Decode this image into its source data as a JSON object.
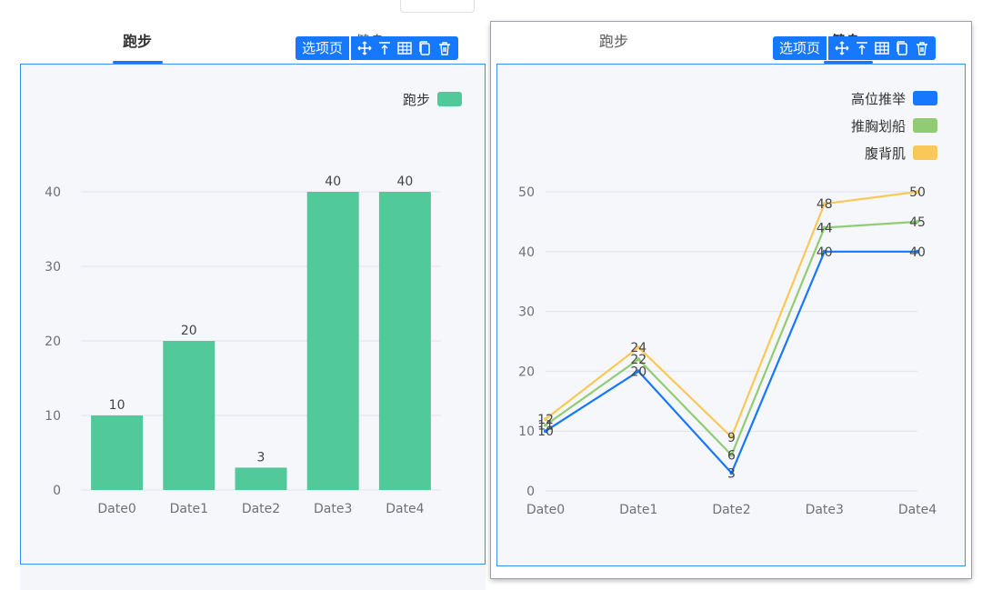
{
  "left": {
    "tabs": [
      {
        "label": "跑步",
        "active": true
      },
      {
        "label": "健身",
        "active": false
      }
    ],
    "toolbar_label": "选项页"
  },
  "right": {
    "tabs": [
      {
        "label": "跑步",
        "active": false
      },
      {
        "label": "健身",
        "active": true
      }
    ],
    "toolbar_label": "选项页"
  },
  "toolbar_icons": [
    "move-icon",
    "pin-top-icon",
    "table-icon",
    "copy-icon",
    "delete-icon"
  ],
  "chart_data": [
    {
      "type": "bar",
      "categories": [
        "Date0",
        "Date1",
        "Date2",
        "Date3",
        "Date4"
      ],
      "series": [
        {
          "name": "跑步",
          "values": [
            10,
            20,
            3,
            40,
            40
          ],
          "color": "#52c99a"
        }
      ],
      "ylim": [
        0,
        40
      ],
      "yticks": [
        0,
        10,
        20,
        30,
        40
      ],
      "legend": "top-right",
      "grid": true
    },
    {
      "type": "line",
      "categories": [
        "Date0",
        "Date1",
        "Date2",
        "Date3",
        "Date4"
      ],
      "series": [
        {
          "name": "高位推举",
          "values": [
            10,
            20,
            3,
            40,
            40
          ],
          "color": "#1677ff"
        },
        {
          "name": "推胸划船",
          "values": [
            11,
            22,
            6,
            44,
            45
          ],
          "color": "#91cc75"
        },
        {
          "name": "腹背肌",
          "values": [
            12,
            24,
            9,
            48,
            50
          ],
          "color": "#fac858"
        }
      ],
      "ylim": [
        0,
        50
      ],
      "yticks": [
        0,
        10,
        20,
        30,
        40,
        50
      ],
      "legend": "top-right",
      "grid": true
    }
  ]
}
